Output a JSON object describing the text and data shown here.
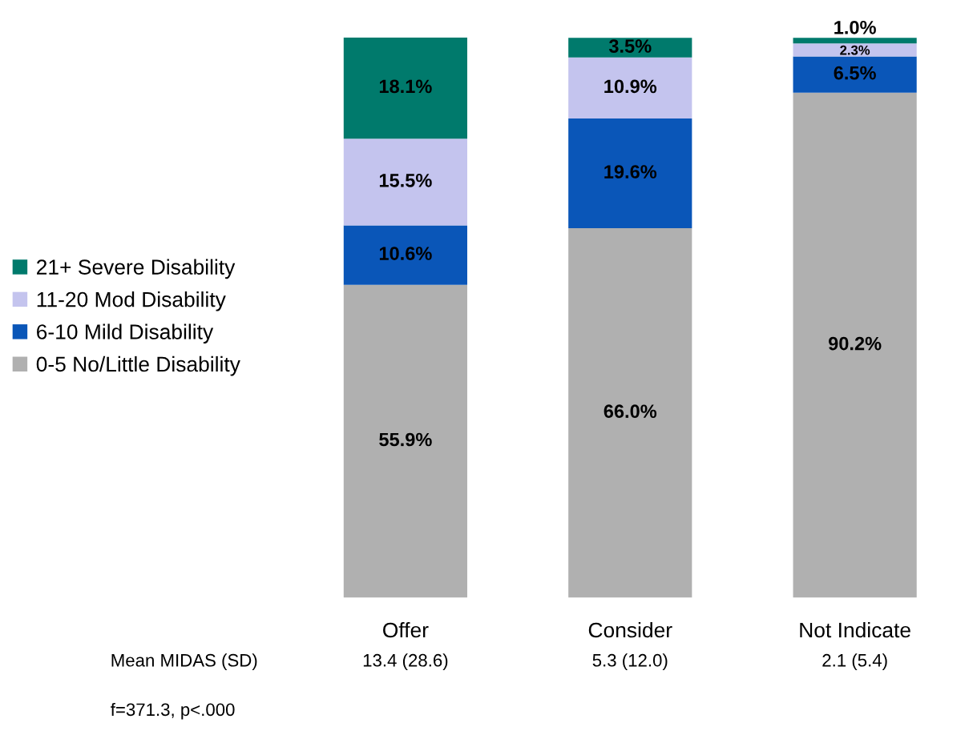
{
  "chart_data": {
    "type": "bar",
    "stacked": true,
    "categories": [
      "Offer",
      "Consider",
      "Not Indicate"
    ],
    "series": [
      {
        "name": "0-5 No/Little Disability",
        "color": "#b0b0b0",
        "values": [
          55.9,
          66.0,
          90.2
        ],
        "value_labels": [
          "55.9%",
          "66.0%",
          "90.2%"
        ]
      },
      {
        "name": "6-10 Mild Disability",
        "color": "#0a56b8",
        "values": [
          10.6,
          19.6,
          6.5
        ],
        "value_labels": [
          "10.6%",
          "19.6%",
          "6.5%"
        ]
      },
      {
        "name": "11-20 Mod Disability",
        "color": "#c4c4ee",
        "values": [
          15.5,
          10.9,
          2.3
        ],
        "value_labels": [
          "15.5%",
          "10.9%",
          "2.3%"
        ]
      },
      {
        "name": "21+ Severe Disability",
        "color": "#007a6c",
        "values": [
          18.1,
          3.5,
          1.0
        ],
        "value_labels": [
          "18.1%",
          "3.5%",
          "1.0%"
        ]
      }
    ],
    "legend": "left",
    "tick_labels": "x",
    "grid": false,
    "annotations": [
      "Mean MIDAS (SD)",
      "13.4 (28.6)",
      "5.3 (12.0)",
      "2.1 (5.4)",
      "f=371.3, p<.000"
    ]
  }
}
